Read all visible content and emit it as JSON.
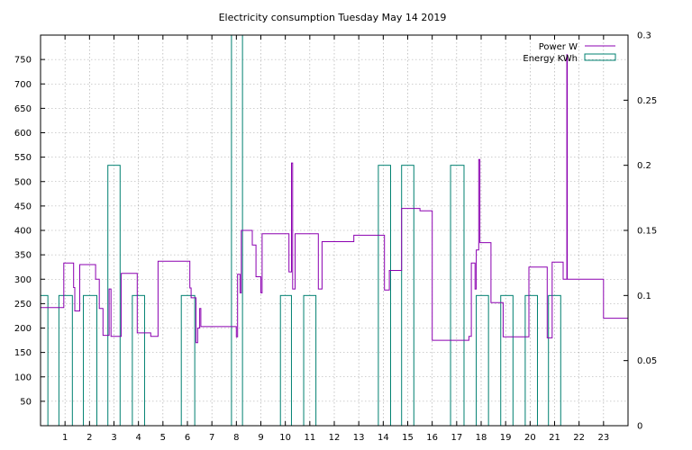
{
  "chart_data": {
    "type": "line",
    "title": "Electricity consumption Tuesday May 14 2019",
    "xlabel": "",
    "ylabel": "",
    "y2label": "",
    "xlim": [
      0,
      24
    ],
    "ylim": [
      0,
      800
    ],
    "y2lim": [
      0,
      0.3
    ],
    "grid": true,
    "legend_position": "top-right",
    "x_ticks": [
      1,
      2,
      3,
      4,
      5,
      6,
      7,
      8,
      9,
      10,
      11,
      12,
      13,
      14,
      15,
      16,
      17,
      18,
      19,
      20,
      21,
      22,
      23
    ],
    "y_ticks": [
      50,
      100,
      150,
      200,
      250,
      300,
      350,
      400,
      450,
      500,
      550,
      600,
      650,
      700,
      750
    ],
    "y2_ticks": [
      "0",
      "0.05",
      "0.1",
      "0.15",
      "0.2",
      "0.25",
      "0.3"
    ],
    "y2_tick_values": [
      0,
      0.05,
      0.1,
      0.15,
      0.2,
      0.25,
      0.3
    ],
    "series": [
      {
        "name": "Power W",
        "axis": "left",
        "color": "#8b00b0",
        "style": "step",
        "points": [
          [
            0,
            242
          ],
          [
            0.95,
            242
          ],
          [
            0.95,
            333
          ],
          [
            1.35,
            333
          ],
          [
            1.35,
            283
          ],
          [
            1.4,
            283
          ],
          [
            1.4,
            235
          ],
          [
            1.6,
            235
          ],
          [
            1.6,
            330
          ],
          [
            2.25,
            330
          ],
          [
            2.25,
            300
          ],
          [
            2.4,
            300
          ],
          [
            2.4,
            240
          ],
          [
            2.55,
            240
          ],
          [
            2.55,
            185
          ],
          [
            2.8,
            185
          ],
          [
            2.8,
            280
          ],
          [
            2.88,
            280
          ],
          [
            2.88,
            183
          ],
          [
            3.3,
            183
          ],
          [
            3.3,
            312
          ],
          [
            3.95,
            312
          ],
          [
            3.95,
            190
          ],
          [
            4.5,
            190
          ],
          [
            4.5,
            183
          ],
          [
            4.8,
            183
          ],
          [
            4.8,
            337
          ],
          [
            6.1,
            337
          ],
          [
            6.1,
            282
          ],
          [
            6.15,
            282
          ],
          [
            6.15,
            262
          ],
          [
            6.35,
            262
          ],
          [
            6.35,
            170
          ],
          [
            6.42,
            170
          ],
          [
            6.42,
            200
          ],
          [
            6.5,
            200
          ],
          [
            6.5,
            240
          ],
          [
            6.55,
            240
          ],
          [
            6.55,
            203
          ],
          [
            8.0,
            203
          ],
          [
            8.0,
            182
          ],
          [
            8.05,
            182
          ],
          [
            8.05,
            310
          ],
          [
            8.15,
            310
          ],
          [
            8.15,
            272
          ],
          [
            8.2,
            272
          ],
          [
            8.2,
            400
          ],
          [
            8.65,
            400
          ],
          [
            8.65,
            370
          ],
          [
            8.8,
            370
          ],
          [
            8.8,
            305
          ],
          [
            9.0,
            305
          ],
          [
            9.0,
            272
          ],
          [
            9.05,
            272
          ],
          [
            9.05,
            393
          ],
          [
            10.15,
            393
          ],
          [
            10.15,
            315
          ],
          [
            10.25,
            315
          ],
          [
            10.25,
            538
          ],
          [
            10.3,
            538
          ],
          [
            10.3,
            280
          ],
          [
            10.4,
            280
          ],
          [
            10.4,
            393
          ],
          [
            11.35,
            393
          ],
          [
            11.35,
            280
          ],
          [
            11.5,
            280
          ],
          [
            11.5,
            377
          ],
          [
            12.8,
            377
          ],
          [
            12.8,
            390
          ],
          [
            14.05,
            390
          ],
          [
            14.05,
            278
          ],
          [
            14.25,
            278
          ],
          [
            14.25,
            318
          ],
          [
            14.75,
            318
          ],
          [
            14.75,
            445
          ],
          [
            15.5,
            445
          ],
          [
            15.5,
            440
          ],
          [
            16.0,
            440
          ],
          [
            16.0,
            175
          ],
          [
            17.5,
            175
          ],
          [
            17.5,
            183
          ],
          [
            17.6,
            183
          ],
          [
            17.6,
            333
          ],
          [
            17.75,
            333
          ],
          [
            17.75,
            280
          ],
          [
            17.8,
            280
          ],
          [
            17.8,
            360
          ],
          [
            17.9,
            360
          ],
          [
            17.9,
            545
          ],
          [
            17.95,
            545
          ],
          [
            17.95,
            375
          ],
          [
            18.4,
            375
          ],
          [
            18.4,
            252
          ],
          [
            18.9,
            252
          ],
          [
            18.9,
            182
          ],
          [
            19.95,
            182
          ],
          [
            19.95,
            325
          ],
          [
            20.7,
            325
          ],
          [
            20.7,
            180
          ],
          [
            20.9,
            180
          ],
          [
            20.9,
            335
          ],
          [
            21.35,
            335
          ],
          [
            21.35,
            300
          ],
          [
            21.5,
            300
          ],
          [
            21.5,
            760
          ],
          [
            21.52,
            760
          ],
          [
            21.52,
            300
          ],
          [
            23.0,
            300
          ],
          [
            23.0,
            220
          ],
          [
            24.0,
            220
          ]
        ]
      },
      {
        "name": "Energy KWh",
        "axis": "right",
        "color": "#008070",
        "style": "bars",
        "bars": [
          [
            0.0,
            0.3,
            0.1
          ],
          [
            0.75,
            1.3,
            0.1
          ],
          [
            1.75,
            2.3,
            0.1
          ],
          [
            2.75,
            3.25,
            0.2
          ],
          [
            3.75,
            4.25,
            0.1
          ],
          [
            5.75,
            6.3,
            0.1
          ],
          [
            7.8,
            8.25,
            0.3
          ],
          [
            9.8,
            10.25,
            0.1
          ],
          [
            10.75,
            11.25,
            0.1
          ],
          [
            13.8,
            14.3,
            0.2
          ],
          [
            14.75,
            15.25,
            0.2
          ],
          [
            16.75,
            17.3,
            0.2
          ],
          [
            17.8,
            18.3,
            0.1
          ],
          [
            18.8,
            19.3,
            0.1
          ],
          [
            19.8,
            20.3,
            0.1
          ],
          [
            20.75,
            21.25,
            0.1
          ]
        ]
      }
    ]
  }
}
